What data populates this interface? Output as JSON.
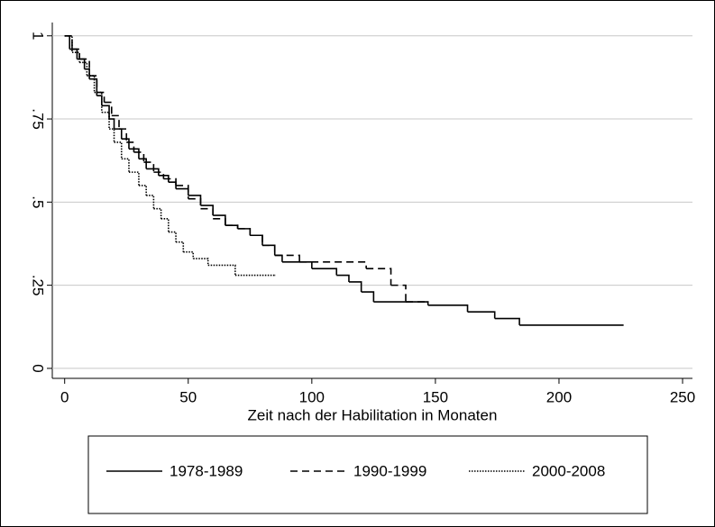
{
  "chart_data": {
    "type": "step",
    "xlabel": "Zeit nach der Habilitation in Monaten",
    "xlim": [
      -5,
      254
    ],
    "ylim": [
      -0.03,
      1.04
    ],
    "xticks": [
      0,
      50,
      100,
      150,
      200,
      250
    ],
    "yticks": [
      0,
      {
        "value": 0.25,
        "label": ".25"
      },
      {
        "value": 0.5,
        "label": ".5"
      },
      {
        "value": 0.75,
        "label": ".75"
      },
      1
    ],
    "grid": true,
    "series": [
      {
        "name": "1978-1989",
        "color": "#000000",
        "style": "solid",
        "x": [
          0,
          2,
          5,
          8,
          10,
          13,
          15,
          18,
          20,
          23,
          26,
          30,
          33,
          38,
          42,
          45,
          50,
          55,
          60,
          65,
          70,
          75,
          80,
          85,
          88,
          100,
          110,
          115,
          120,
          125,
          147,
          163,
          174,
          184,
          226
        ],
        "values": [
          1,
          0.96,
          0.93,
          0.9,
          0.87,
          0.82,
          0.79,
          0.75,
          0.72,
          0.69,
          0.66,
          0.63,
          0.6,
          0.58,
          0.56,
          0.54,
          0.52,
          0.49,
          0.46,
          0.43,
          0.42,
          0.4,
          0.37,
          0.34,
          0.32,
          0.3,
          0.28,
          0.26,
          0.23,
          0.2,
          0.19,
          0.17,
          0.15,
          0.13,
          0.13
        ]
      },
      {
        "name": "1990-1999",
        "color": "#000000",
        "style": "dashed",
        "x": [
          0,
          3,
          6,
          10,
          13,
          16,
          19,
          22,
          25,
          28,
          32,
          36,
          40,
          45,
          50,
          55,
          60,
          65,
          70,
          75,
          80,
          85,
          95,
          122,
          132,
          138,
          147
        ],
        "values": [
          1,
          0.96,
          0.93,
          0.88,
          0.83,
          0.8,
          0.76,
          0.72,
          0.68,
          0.65,
          0.62,
          0.59,
          0.57,
          0.55,
          0.51,
          0.48,
          0.45,
          0.43,
          0.42,
          0.4,
          0.37,
          0.34,
          0.32,
          0.3,
          0.25,
          0.2,
          0.2
        ]
      },
      {
        "name": "2000-2008",
        "color": "#000000",
        "style": "dotted",
        "x": [
          0,
          3,
          6,
          9,
          12,
          15,
          18,
          20,
          23,
          26,
          30,
          33,
          36,
          39,
          42,
          45,
          48,
          52,
          58,
          69,
          85
        ],
        "values": [
          1,
          0.95,
          0.92,
          0.88,
          0.83,
          0.77,
          0.72,
          0.68,
          0.63,
          0.59,
          0.55,
          0.52,
          0.48,
          0.45,
          0.41,
          0.38,
          0.35,
          0.33,
          0.31,
          0.28,
          0.28
        ]
      }
    ]
  }
}
